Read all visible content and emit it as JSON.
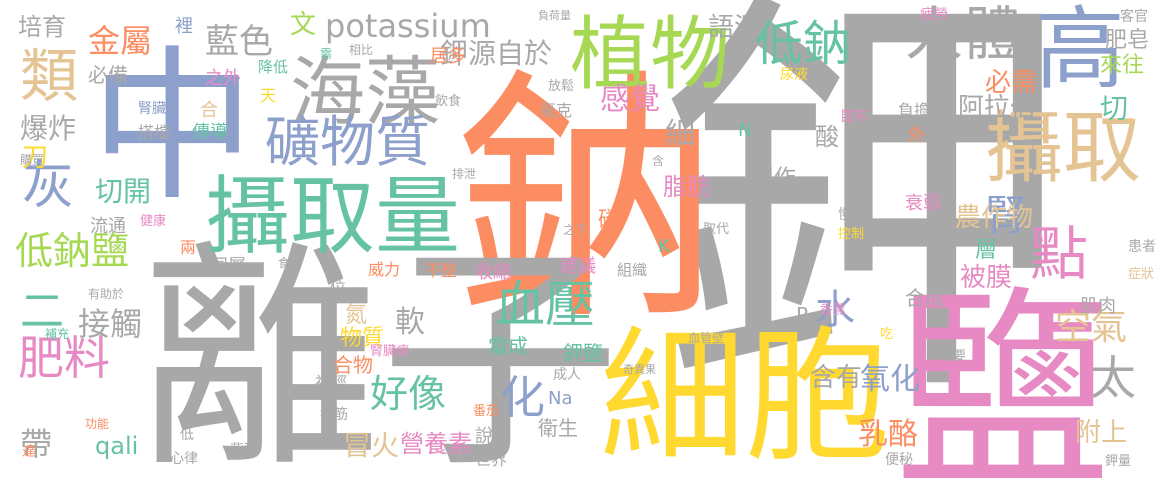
{
  "palette": {
    "gray": "#a8a8a8",
    "orange": "#fc8d62",
    "blue": "#8da0cb",
    "pink": "#e78ac3",
    "green": "#a6d854",
    "yellow": "#ffd92f",
    "tan": "#e5c494",
    "teal": "#66c2a5"
  },
  "words": [
    {
      "text": "鉀",
      "color": "gray"
    },
    {
      "text": "鈉",
      "color": "orange"
    },
    {
      "text": "離子",
      "color": "gray"
    },
    {
      "text": "鹽",
      "color": "pink"
    },
    {
      "text": "中",
      "color": "blue"
    },
    {
      "text": "細胞",
      "color": "yellow"
    },
    {
      "text": "攝取量",
      "color": "teal"
    },
    {
      "text": "植物",
      "color": "green"
    },
    {
      "text": "海藻",
      "color": "gray"
    },
    {
      "text": "高",
      "color": "blue"
    },
    {
      "text": "攝取",
      "color": "tan"
    },
    {
      "text": "類",
      "color": "tan"
    },
    {
      "text": "人體",
      "color": "gray"
    },
    {
      "text": "礦物質",
      "color": "blue"
    },
    {
      "text": "低鈉",
      "color": "teal"
    },
    {
      "text": "點",
      "color": "pink"
    },
    {
      "text": "血壓",
      "color": "teal"
    },
    {
      "text": "灰",
      "color": "blue"
    },
    {
      "text": "potassium",
      "color": "gray"
    },
    {
      "text": "肥料",
      "color": "pink"
    },
    {
      "text": "低鈉鹽",
      "color": "green"
    },
    {
      "text": "腎",
      "color": "blue"
    },
    {
      "text": "太",
      "color": "gray"
    },
    {
      "text": "化",
      "color": "blue"
    },
    {
      "text": "金屬",
      "color": "orange"
    },
    {
      "text": "藍色",
      "color": "gray"
    },
    {
      "text": "二",
      "color": "teal"
    },
    {
      "text": "好像",
      "color": "teal"
    },
    {
      "text": "細",
      "color": "gray"
    },
    {
      "text": "帶",
      "color": "gray"
    },
    {
      "text": "空氣",
      "color": "tan"
    },
    {
      "text": "感覺",
      "color": "pink"
    },
    {
      "text": "鉀源自於",
      "color": "gray"
    },
    {
      "text": "切開",
      "color": "teal"
    },
    {
      "text": "爆炸",
      "color": "gray"
    },
    {
      "text": "接觸",
      "color": "gray"
    },
    {
      "text": "培育",
      "color": "gray"
    },
    {
      "text": "必備",
      "color": "gray"
    },
    {
      "text": "文",
      "color": "green"
    },
    {
      "text": "語源",
      "color": "gray"
    },
    {
      "text": "軟",
      "color": "gray"
    },
    {
      "text": "阿拉伯",
      "color": "gray"
    },
    {
      "text": "切",
      "color": "teal"
    },
    {
      "text": "肥皂",
      "color": "gray"
    },
    {
      "text": "來往",
      "color": "green"
    },
    {
      "text": "必需",
      "color": "orange"
    },
    {
      "text": "酸",
      "color": "gray"
    },
    {
      "text": "氧化",
      "color": "blue"
    },
    {
      "text": "乳酪",
      "color": "orange"
    },
    {
      "text": "冒火",
      "color": "tan"
    },
    {
      "text": "營養素",
      "color": "pink"
    },
    {
      "text": "含有",
      "color": "gray"
    },
    {
      "text": "附上",
      "color": "tan"
    },
    {
      "text": "水",
      "color": "blue"
    },
    {
      "text": "被膜",
      "color": "pink"
    },
    {
      "text": "農作物",
      "color": "tan"
    },
    {
      "text": "層",
      "color": "teal"
    },
    {
      "text": "脂肪",
      "color": "pink"
    },
    {
      "text": "製作",
      "color": "gray"
    },
    {
      "text": "刀",
      "color": "yellow"
    },
    {
      "text": "流通",
      "color": "gray"
    },
    {
      "text": "同屬",
      "color": "gray"
    },
    {
      "text": "合成",
      "color": "gray"
    },
    {
      "text": "肌肉",
      "color": "gray"
    },
    {
      "text": "收縮",
      "color": "pink"
    },
    {
      "text": "建議",
      "color": "pink"
    },
    {
      "text": "磷",
      "color": "orange"
    },
    {
      "text": "當成",
      "color": "teal"
    },
    {
      "text": "鉀鹽",
      "color": "teal"
    },
    {
      "text": "合物",
      "color": "orange"
    },
    {
      "text": "物質",
      "color": "yellow"
    },
    {
      "text": "氮",
      "color": "tan"
    },
    {
      "text": "qali",
      "color": "teal"
    },
    {
      "text": "衛生",
      "color": "gray"
    },
    {
      "text": "Na",
      "color": "blue"
    },
    {
      "text": "說",
      "color": "gray"
    },
    {
      "text": "世界",
      "color": "gray"
    },
    {
      "text": "成人",
      "color": "gray"
    },
    {
      "text": "居多",
      "color": "orange"
    },
    {
      "text": "傳導",
      "color": "teal"
    },
    {
      "text": "合",
      "color": "tan"
    },
    {
      "text": "搭檔",
      "color": "gray"
    },
    {
      "text": "之外",
      "color": "pink"
    },
    {
      "text": "腎臟",
      "color": "blue"
    },
    {
      "text": "毫克",
      "color": "gray"
    },
    {
      "text": "放鬆",
      "color": "gray"
    },
    {
      "text": "飲食",
      "color": "gray"
    },
    {
      "text": "裡",
      "color": "blue"
    },
    {
      "text": "降低",
      "color": "teal"
    },
    {
      "text": "天",
      "color": "yellow"
    },
    {
      "text": "需",
      "color": "teal"
    },
    {
      "text": "相比",
      "color": "gray"
    },
    {
      "text": "負荷量",
      "color": "gray"
    },
    {
      "text": "特別",
      "color": "gray"
    },
    {
      "text": "疲勞",
      "color": "pink"
    },
    {
      "text": "客官",
      "color": "gray"
    },
    {
      "text": "尿液",
      "color": "yellow"
    },
    {
      "text": "昆布",
      "color": "pink"
    },
    {
      "text": "負擔",
      "color": "gray"
    },
    {
      "text": "過多",
      "color": "gray"
    },
    {
      "text": "N",
      "color": "teal"
    },
    {
      "text": "外",
      "color": "orange"
    },
    {
      "text": "含",
      "color": "gray"
    },
    {
      "text": "應",
      "color": "gray"
    },
    {
      "text": "衰弱",
      "color": "pink"
    },
    {
      "text": "慢性",
      "color": "gray"
    },
    {
      "text": "控制",
      "color": "yellow"
    },
    {
      "text": "患者",
      "color": "gray"
    },
    {
      "text": "症狀",
      "color": "tan"
    },
    {
      "text": "取代",
      "color": "gray"
    },
    {
      "text": "之下",
      "color": "gray"
    },
    {
      "text": "K",
      "color": "teal"
    },
    {
      "text": "排泄",
      "color": "gray"
    },
    {
      "text": "購買",
      "color": "gray"
    },
    {
      "text": "健康",
      "color": "pink"
    },
    {
      "text": "兩",
      "color": "orange"
    },
    {
      "text": "食物",
      "color": "gray"
    },
    {
      "text": "威力",
      "color": "orange"
    },
    {
      "text": "不整",
      "color": "orange"
    },
    {
      "text": "組織",
      "color": "gray"
    },
    {
      "text": "P",
      "color": "gray"
    },
    {
      "text": "香蕉",
      "color": "pink"
    },
    {
      "text": "有助於",
      "color": "gray"
    },
    {
      "text": "位",
      "color": "gray"
    },
    {
      "text": "補充",
      "color": "teal"
    },
    {
      "text": "腎臟病",
      "color": "pink"
    },
    {
      "text": "血管壁",
      "color": "gray"
    },
    {
      "text": "吃",
      "color": "yellow"
    },
    {
      "text": "想要",
      "color": "gray"
    },
    {
      "text": "Y",
      "color": "teal"
    },
    {
      "text": "奇異果",
      "color": "gray"
    },
    {
      "text": "神經",
      "color": "gray"
    },
    {
      "text": "抽筋",
      "color": "gray"
    },
    {
      "text": "番茄",
      "color": "orange"
    },
    {
      "text": "紫菜",
      "color": "gray"
    },
    {
      "text": "功能",
      "color": "orange"
    },
    {
      "text": "低",
      "color": "gray"
    },
    {
      "text": "心律",
      "color": "gray"
    },
    {
      "text": "達",
      "color": "orange"
    },
    {
      "text": "便秘",
      "color": "gray"
    },
    {
      "text": "鉀量",
      "color": "gray"
    }
  ]
}
